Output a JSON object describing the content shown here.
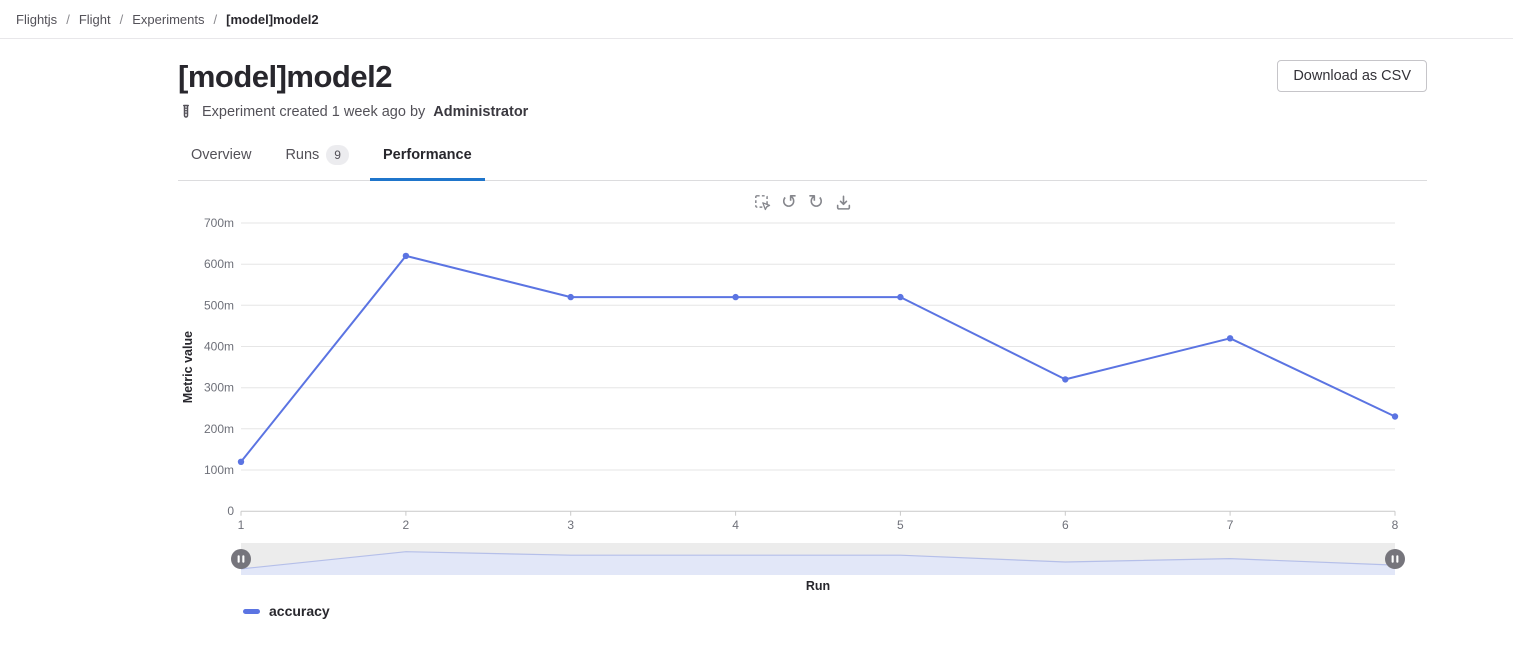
{
  "breadcrumb": {
    "separator": "/",
    "items": [
      "Flightjs",
      "Flight",
      "Experiments",
      "[model]model2"
    ]
  },
  "header": {
    "title": "[model]model2",
    "download_button": "Download as CSV",
    "created_prefix": "Experiment created 1 week ago by",
    "created_author": "Administrator",
    "icon": "test-tube-icon"
  },
  "tabs": [
    {
      "label": "Overview",
      "active": false
    },
    {
      "label": "Runs",
      "badge": "9",
      "active": false
    },
    {
      "label": "Performance",
      "active": true
    }
  ],
  "chart_toolbar": {
    "icons": [
      {
        "name": "marquee-zoom-icon"
      },
      {
        "name": "undo-icon",
        "glyph": "↺"
      },
      {
        "name": "redo-icon",
        "glyph": "↻"
      },
      {
        "name": "download-icon"
      }
    ]
  },
  "chart_data": {
    "type": "line",
    "title": "",
    "xlabel": "Run",
    "ylabel": "Metric value",
    "x": [
      1,
      2,
      3,
      4,
      5,
      6,
      7,
      8
    ],
    "x_tick_labels": [
      "1",
      "2",
      "3",
      "4",
      "5",
      "6",
      "7",
      "8"
    ],
    "y_ticks": [
      "0",
      "100m",
      "200m",
      "300m",
      "400m",
      "500m",
      "600m",
      "700m"
    ],
    "ylim": [
      0,
      0.7
    ],
    "grid": true,
    "legend_position": "bottom-left",
    "range_slider": true,
    "series": [
      {
        "name": "accuracy",
        "color": "#5b74e2",
        "values": [
          0.12,
          0.62,
          0.52,
          0.52,
          0.52,
          0.32,
          0.42,
          0.23
        ],
        "values_display": [
          "120m",
          "620m",
          "520m",
          "520m",
          "520m",
          "320m",
          "420m",
          "230m"
        ]
      }
    ]
  },
  "legend": {
    "items": [
      {
        "label": "accuracy",
        "color": "#5b74e2"
      }
    ]
  },
  "colors": {
    "accent_blue": "#1f75cb",
    "line_blue": "#5b74e2",
    "grid_gray": "#e6e6e6",
    "axis_gray": "#c9c9c9",
    "slider_track": "#ececec",
    "slider_area_fill": "#e2e7f8",
    "slider_area_line": "#b5bfe9",
    "slider_handle": "#76757c"
  }
}
